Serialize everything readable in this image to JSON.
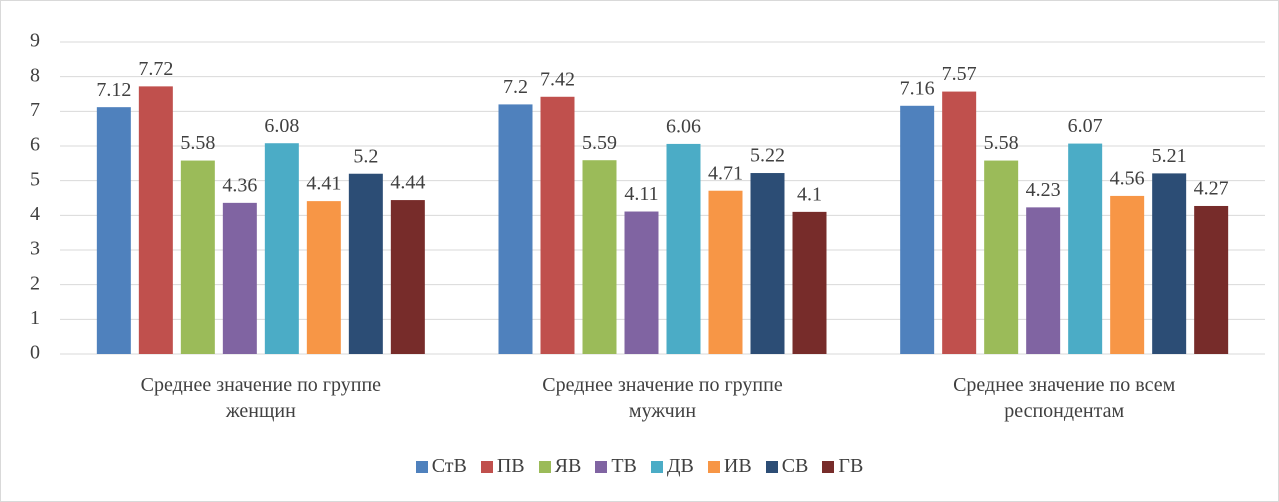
{
  "chart_data": {
    "type": "bar",
    "categories": [
      "Среднее значение по группе женщин",
      "Среднее значение по группе мужчин",
      "Среднее значение по всем респондентам"
    ],
    "series": [
      {
        "name": "СтВ",
        "color": "#4f81bd",
        "values": [
          7.12,
          7.2,
          7.16
        ]
      },
      {
        "name": "ПВ",
        "color": "#c0504d",
        "values": [
          7.72,
          7.42,
          7.57
        ]
      },
      {
        "name": "ЯВ",
        "color": "#9bbb59",
        "values": [
          5.58,
          5.59,
          5.58
        ]
      },
      {
        "name": "ТВ",
        "color": "#8064a2",
        "values": [
          4.36,
          4.11,
          4.23
        ]
      },
      {
        "name": "ДВ",
        "color": "#4bacc6",
        "values": [
          6.08,
          6.06,
          6.07
        ]
      },
      {
        "name": "ИВ",
        "color": "#f79646",
        "values": [
          4.41,
          4.71,
          4.56
        ]
      },
      {
        "name": "СВ",
        "color": "#2c4d75",
        "values": [
          5.2,
          5.22,
          5.21
        ]
      },
      {
        "name": "ГВ",
        "color": "#772c2a",
        "values": [
          4.44,
          4.1,
          4.27
        ]
      }
    ],
    "ylim": [
      0,
      9
    ],
    "yticks": [
      0,
      1,
      2,
      3,
      4,
      5,
      6,
      7,
      8,
      9
    ],
    "grid": true,
    "legend": "bottom"
  }
}
